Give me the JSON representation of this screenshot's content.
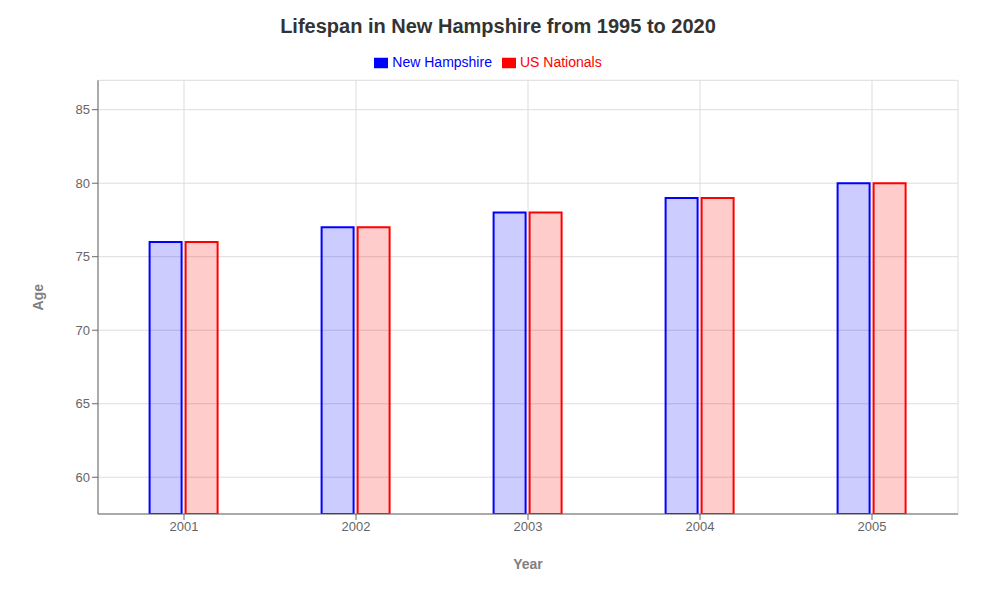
{
  "chart_data": {
    "type": "bar",
    "title": "Lifespan in New Hampshire from 1995 to 2020",
    "x_label": "Year",
    "y_label": "Age",
    "categories": [
      "2001",
      "2002",
      "2003",
      "2004",
      "2005"
    ],
    "series": [
      {
        "name": "New Hampshire",
        "color": "#0000ff",
        "values": [
          76,
          77,
          78,
          79,
          80
        ]
      },
      {
        "name": "US Nationals",
        "color": "#ff0000",
        "values": [
          76,
          77,
          78,
          79,
          80
        ]
      }
    ],
    "ylim": [
      57.5,
      87
    ],
    "yticks": [
      60,
      65,
      70,
      75,
      80,
      85
    ],
    "grid": true,
    "legend": "top"
  }
}
